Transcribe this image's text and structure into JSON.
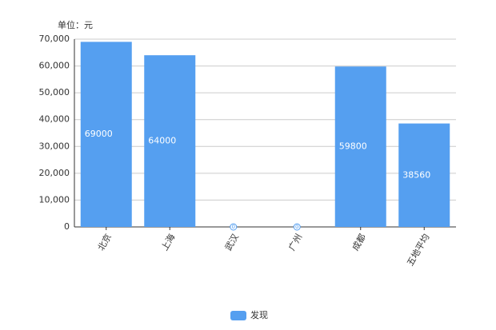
{
  "chart_data": {
    "type": "bar",
    "y_unit": "单位：元",
    "categories": [
      "北京",
      "上海",
      "武汉",
      "广州",
      "成都",
      "五地平均"
    ],
    "series": [
      {
        "name": "发现",
        "color": "#559ff0",
        "values": [
          69000,
          64000,
          0,
          0,
          59800,
          38560
        ]
      }
    ],
    "ylim": [
      0,
      70000
    ],
    "yticks": [
      0,
      {
        "value": 10000,
        "label": "10,000"
      },
      {
        "value": 20000,
        "label": "20,000"
      },
      {
        "value": 30000,
        "label": "30,000"
      },
      {
        "value": 40000,
        "label": "40,000"
      },
      {
        "value": 50000,
        "label": "50,000"
      },
      {
        "value": 60000,
        "label": "60,000"
      },
      {
        "value": 70000,
        "label": "70,000"
      }
    ],
    "grid": true
  }
}
